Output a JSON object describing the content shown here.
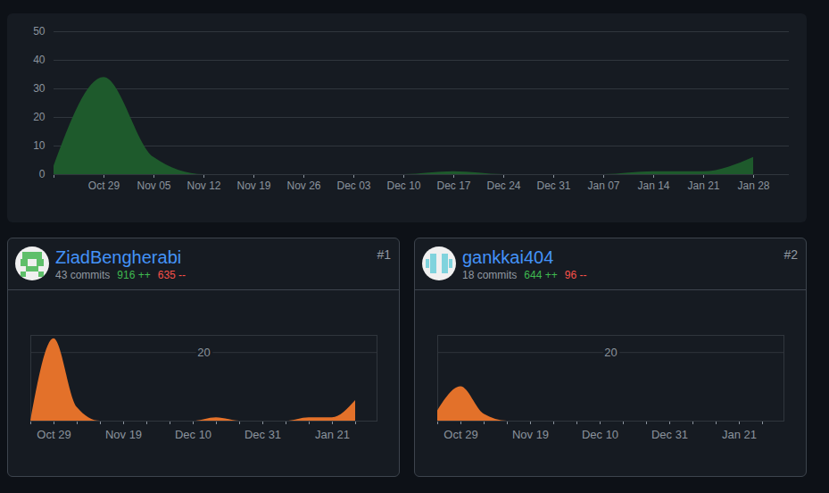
{
  "chart_data": [
    {
      "type": "area",
      "categories": [
        null,
        "Oct 29",
        "Nov 05",
        "Nov 12",
        "Nov 19",
        "Nov 26",
        "Dec 03",
        "Dec 10",
        "Dec 17",
        "Dec 24",
        "Dec 31",
        "Jan 07",
        "Jan 14",
        "Jan 21",
        "Jan 28"
      ],
      "values": [
        3,
        34,
        6,
        0,
        0,
        0,
        0,
        0,
        1,
        0,
        0,
        0,
        1,
        1,
        6
      ],
      "color": "#1e5a2c",
      "ylim": [
        0,
        50
      ],
      "yticks": [
        0,
        10,
        20,
        30,
        40,
        50
      ],
      "grid": true
    },
    {
      "type": "area",
      "title": "ZiadBengherabi",
      "subtitle": "43 commits",
      "annotations": [
        "916 ++",
        "635 --",
        "#1"
      ],
      "categories": [
        null,
        "Oct 29",
        null,
        null,
        "Nov 19",
        null,
        null,
        "Dec 10",
        null,
        null,
        "Dec 31",
        null,
        null,
        "Jan 21",
        null
      ],
      "values": [
        0,
        24,
        4,
        0,
        0,
        0,
        0,
        0,
        1,
        0,
        0,
        0,
        1,
        1,
        6
      ],
      "color": "#e3712a",
      "ylim": [
        0,
        25
      ],
      "yticks": [
        20
      ],
      "grid": true
    },
    {
      "type": "area",
      "title": "gankkai404",
      "subtitle": "18 commits",
      "annotations": [
        "644 ++",
        "96 --",
        "#2"
      ],
      "categories": [
        null,
        "Oct 29",
        null,
        null,
        "Nov 19",
        null,
        null,
        "Dec 10",
        null,
        null,
        "Dec 31",
        null,
        null,
        "Jan 21",
        null
      ],
      "values": [
        3,
        10,
        2,
        0,
        0,
        0,
        0,
        0,
        0,
        0,
        0,
        0,
        0,
        0,
        0
      ],
      "color": "#e3712a",
      "ylim": [
        0,
        25
      ],
      "yticks": [
        20
      ],
      "grid": true
    }
  ]
}
